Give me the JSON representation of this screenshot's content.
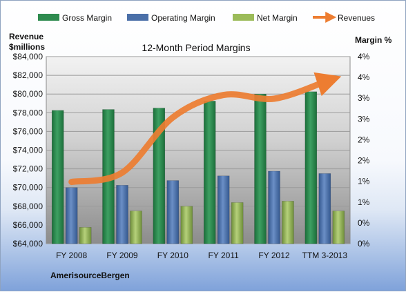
{
  "chart_data": {
    "type": "bar",
    "title": "12-Month Period Margins",
    "company": "AmerisourceBergen",
    "ylabel_left": [
      "Revenue",
      "$millions"
    ],
    "ylabel_right": "Margin %",
    "categories": [
      "FY 2008",
      "FY 2009",
      "FY 2010",
      "FY 2011",
      "FY 2012",
      "TTM 3-2013"
    ],
    "ylim_left": [
      64000,
      84000
    ],
    "ylim_right": [
      0,
      4
    ],
    "left_ticks": [
      "$64,000",
      "$66,000",
      "$68,000",
      "$70,000",
      "$72,000",
      "$74,000",
      "$76,000",
      "$78,000",
      "$80,000",
      "$82,000",
      "$84,000"
    ],
    "right_ticks": [
      "0%",
      "0%",
      "1%",
      "1%",
      "2%",
      "2%",
      "3%",
      "3%",
      "4%",
      "4%"
    ],
    "bar_series": [
      {
        "name": "Gross Margin",
        "color": "#2e8b4f",
        "values": [
          2.85,
          2.87,
          2.9,
          3.05,
          3.2,
          3.25
        ]
      },
      {
        "name": "Operating Margin",
        "color": "#4a6fa8",
        "values": [
          1.2,
          1.25,
          1.35,
          1.45,
          1.55,
          1.5
        ]
      },
      {
        "name": "Net Margin",
        "color": "#9bbb59",
        "values": [
          0.35,
          0.7,
          0.8,
          0.88,
          0.91,
          0.7
        ]
      }
    ],
    "line_series": {
      "name": "Revenues",
      "color": "#ed7d31",
      "values": [
        70600,
        71600,
        77500,
        79900,
        79500,
        81300
      ]
    },
    "grid": true,
    "legend": "top"
  }
}
